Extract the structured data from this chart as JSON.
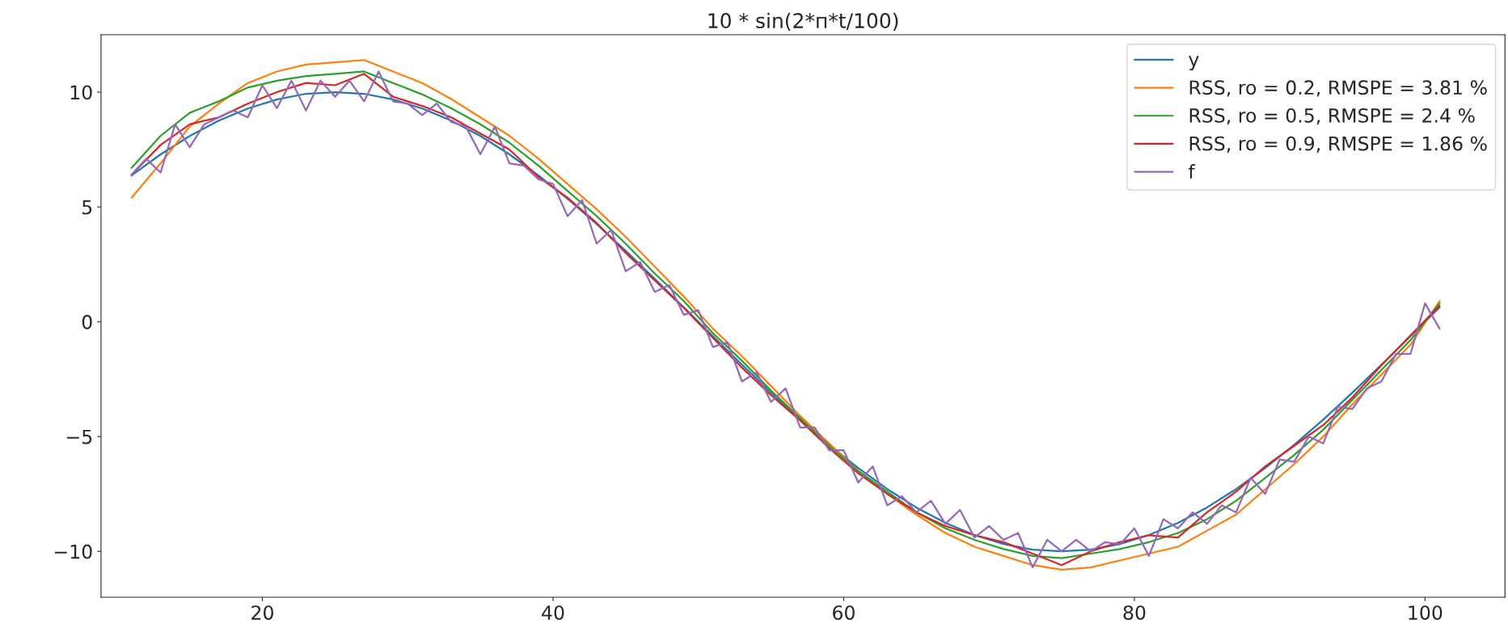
{
  "chart_data": {
    "type": "line",
    "title": "10 * sin(2*п*t/100)",
    "legend": "top right",
    "grid": false,
    "line_style": "solid",
    "marker": "none",
    "xlim": [
      8.9,
      105.5
    ],
    "ylim": [
      -12,
      12.5
    ],
    "xticks": [
      20,
      40,
      60,
      80,
      100
    ],
    "yticks": [
      {
        "value": -10,
        "label": "−10"
      },
      {
        "value": -5,
        "label": "−5"
      },
      0,
      5,
      10
    ],
    "series": [
      {
        "name": "y",
        "color": "#1f77b4",
        "x": [
          11,
          13,
          15,
          17,
          19,
          21,
          23,
          25,
          27,
          29,
          31,
          33,
          35,
          37,
          39,
          41,
          43,
          45,
          47,
          49,
          51,
          53,
          55,
          57,
          59,
          61,
          63,
          65,
          67,
          69,
          71,
          73,
          75,
          77,
          79,
          81,
          83,
          85,
          87,
          89,
          91,
          93,
          95,
          97,
          99,
          101
        ],
        "values": [
          6.37,
          7.29,
          8.09,
          8.76,
          9.29,
          9.68,
          9.93,
          10.0,
          9.93,
          9.68,
          9.29,
          8.76,
          8.09,
          7.29,
          6.37,
          5.36,
          4.26,
          3.09,
          1.87,
          0.63,
          -0.63,
          -1.87,
          -3.09,
          -4.26,
          -5.36,
          -6.37,
          -7.29,
          -8.09,
          -8.76,
          -9.29,
          -9.68,
          -9.93,
          -10.0,
          -9.93,
          -9.68,
          -9.29,
          -8.76,
          -8.09,
          -7.29,
          -6.37,
          -5.36,
          -4.26,
          -3.09,
          -1.87,
          -0.63,
          0.63
        ]
      },
      {
        "name": "RSS, ro = 0.2, RMSPE = 3.81 %",
        "color": "#ff7f0e",
        "x": [
          11,
          13,
          15,
          17,
          19,
          21,
          23,
          25,
          27,
          29,
          31,
          33,
          35,
          37,
          39,
          41,
          43,
          45,
          47,
          49,
          51,
          53,
          55,
          57,
          59,
          61,
          63,
          65,
          67,
          69,
          71,
          73,
          75,
          77,
          79,
          81,
          83,
          85,
          87,
          89,
          91,
          93,
          95,
          97,
          99,
          101
        ],
        "values": [
          5.4,
          6.9,
          8.5,
          9.5,
          10.4,
          10.9,
          11.2,
          11.3,
          11.4,
          10.9,
          10.4,
          9.7,
          8.9,
          8.1,
          7.1,
          6.0,
          4.9,
          3.7,
          2.4,
          1.1,
          -0.3,
          -1.5,
          -2.8,
          -4.1,
          -5.3,
          -6.5,
          -7.5,
          -8.4,
          -9.2,
          -9.8,
          -10.2,
          -10.6,
          -10.8,
          -10.7,
          -10.4,
          -10.1,
          -9.8,
          -9.1,
          -8.4,
          -7.3,
          -6.2,
          -5.0,
          -3.6,
          -2.3,
          -1.0,
          0.9
        ]
      },
      {
        "name": "RSS, ro = 0.5, RMSPE = 2.4 %",
        "color": "#2ca02c",
        "x": [
          11,
          13,
          15,
          17,
          19,
          21,
          23,
          25,
          27,
          29,
          31,
          33,
          35,
          37,
          39,
          41,
          43,
          45,
          47,
          49,
          51,
          53,
          55,
          57,
          59,
          61,
          63,
          65,
          67,
          69,
          71,
          73,
          75,
          77,
          79,
          81,
          83,
          85,
          87,
          89,
          91,
          93,
          95,
          97,
          99,
          101
        ],
        "values": [
          6.7,
          8.1,
          9.1,
          9.6,
          10.2,
          10.5,
          10.7,
          10.8,
          10.9,
          10.4,
          9.9,
          9.3,
          8.6,
          7.8,
          6.8,
          5.7,
          4.6,
          3.4,
          2.1,
          0.9,
          -0.5,
          -1.7,
          -3.0,
          -4.2,
          -5.4,
          -6.5,
          -7.4,
          -8.3,
          -9.0,
          -9.5,
          -9.9,
          -10.2,
          -10.3,
          -10.1,
          -9.9,
          -9.6,
          -9.2,
          -8.6,
          -7.8,
          -6.8,
          -5.8,
          -4.7,
          -3.4,
          -2.1,
          -0.8,
          0.8
        ]
      },
      {
        "name": "RSS, ro = 0.9, RMSPE = 1.86 %",
        "color": "#d62728",
        "x": [
          11,
          13,
          15,
          17,
          19,
          21,
          23,
          25,
          27,
          29,
          31,
          33,
          35,
          37,
          39,
          41,
          43,
          45,
          47,
          49,
          51,
          53,
          55,
          57,
          59,
          61,
          63,
          65,
          67,
          69,
          71,
          73,
          75,
          77,
          79,
          81,
          83,
          85,
          87,
          89,
          91,
          93,
          95,
          97,
          99,
          101
        ],
        "values": [
          6.4,
          7.7,
          8.6,
          8.9,
          9.5,
          10.0,
          10.4,
          10.3,
          10.8,
          9.8,
          9.4,
          8.9,
          8.2,
          7.5,
          6.3,
          5.4,
          4.3,
          3.0,
          1.8,
          0.6,
          -0.7,
          -2.0,
          -3.2,
          -4.3,
          -5.5,
          -6.6,
          -7.5,
          -8.3,
          -8.9,
          -9.3,
          -9.6,
          -10.1,
          -10.6,
          -10.0,
          -9.6,
          -9.3,
          -9.4,
          -8.3,
          -7.4,
          -6.3,
          -5.4,
          -4.5,
          -3.3,
          -1.9,
          -0.6,
          0.7
        ]
      },
      {
        "name": "f",
        "color": "#9467bd",
        "x": [
          11,
          12,
          13,
          14,
          15,
          16,
          17,
          18,
          19,
          20,
          21,
          22,
          23,
          24,
          25,
          26,
          27,
          28,
          29,
          30,
          31,
          32,
          33,
          34,
          35,
          36,
          37,
          38,
          39,
          40,
          41,
          42,
          43,
          44,
          45,
          46,
          47,
          48,
          49,
          50,
          51,
          52,
          53,
          54,
          55,
          56,
          57,
          58,
          59,
          60,
          61,
          62,
          63,
          64,
          65,
          66,
          67,
          68,
          69,
          70,
          71,
          72,
          73,
          74,
          75,
          76,
          77,
          78,
          79,
          80,
          81,
          82,
          83,
          84,
          85,
          86,
          87,
          88,
          89,
          90,
          91,
          92,
          93,
          94,
          95,
          96,
          97,
          98,
          99,
          100,
          101
        ],
        "values": [
          6.4,
          7.1,
          6.5,
          8.6,
          7.6,
          8.6,
          8.9,
          9.2,
          8.9,
          10.3,
          9.3,
          10.5,
          9.2,
          10.5,
          9.8,
          10.5,
          9.6,
          10.9,
          9.6,
          9.5,
          9.0,
          9.5,
          8.7,
          8.5,
          7.3,
          8.5,
          6.9,
          6.8,
          6.2,
          6.0,
          4.6,
          5.3,
          3.4,
          4.0,
          2.2,
          2.6,
          1.3,
          1.6,
          0.3,
          0.5,
          -1.1,
          -0.9,
          -2.6,
          -2.2,
          -3.5,
          -2.9,
          -4.6,
          -4.6,
          -5.6,
          -5.6,
          -7.0,
          -6.3,
          -8.0,
          -7.6,
          -8.3,
          -7.8,
          -8.8,
          -8.2,
          -9.4,
          -8.9,
          -9.5,
          -9.2,
          -10.7,
          -9.5,
          -10.0,
          -9.5,
          -10.0,
          -9.6,
          -9.7,
          -9.0,
          -10.2,
          -8.6,
          -9.0,
          -8.3,
          -8.8,
          -8.0,
          -8.3,
          -6.8,
          -7.5,
          -6.0,
          -6.1,
          -5.0,
          -5.3,
          -3.7,
          -3.8,
          -2.9,
          -2.6,
          -1.4,
          -1.4,
          0.8,
          -0.3
        ]
      }
    ]
  }
}
